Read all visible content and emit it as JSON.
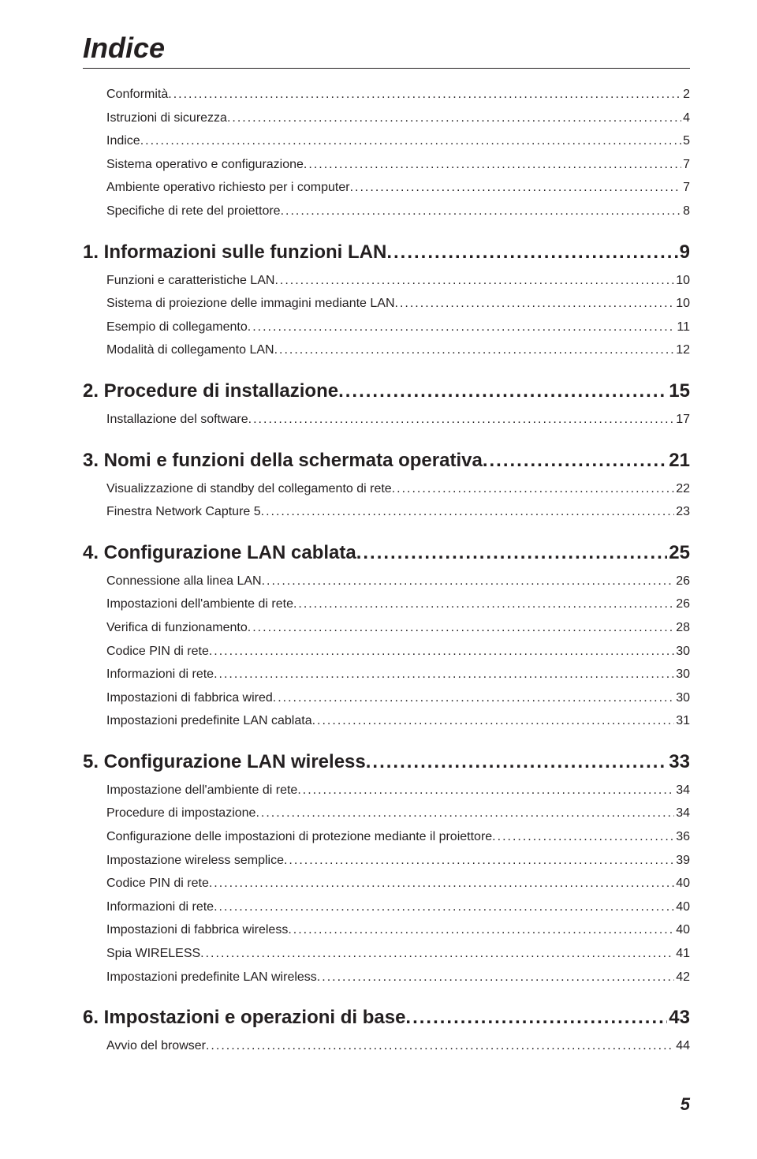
{
  "page": {
    "title": "Indice",
    "footer_page_number": "5",
    "leader_char": "."
  },
  "toc": [
    {
      "level": 1,
      "label": "Conformità",
      "page": "2",
      "first": true
    },
    {
      "level": 1,
      "label": "Istruzioni di sicurezza",
      "page": "4"
    },
    {
      "level": 1,
      "label": "Indice",
      "page": "5"
    },
    {
      "level": 1,
      "label": "Sistema operativo e configurazione",
      "page": "7"
    },
    {
      "level": 1,
      "label": "Ambiente operativo richiesto per i computer",
      "page": "7"
    },
    {
      "level": 1,
      "label": "Specifiche di rete del proiettore",
      "page": "8"
    },
    {
      "level": 0,
      "label": "1. Informazioni sulle funzioni LAN",
      "page": "9"
    },
    {
      "level": 1,
      "label": "Funzioni e caratteristiche LAN",
      "page": "10"
    },
    {
      "level": 1,
      "label": "Sistema di proiezione delle immagini mediante LAN",
      "page": "10"
    },
    {
      "level": 1,
      "label": "Esempio di collegamento",
      "page": "11"
    },
    {
      "level": 1,
      "label": "Modalità di collegamento LAN",
      "page": "12"
    },
    {
      "level": 0,
      "label": "2. Procedure di installazione",
      "page": "15"
    },
    {
      "level": 1,
      "label": "Installazione del software",
      "page": "17"
    },
    {
      "level": 0,
      "label": "3. Nomi e funzioni della schermata operativa",
      "page": "21"
    },
    {
      "level": 1,
      "label": "Visualizzazione di standby del collegamento di rete",
      "page": "22"
    },
    {
      "level": 1,
      "label": "Finestra Network Capture 5",
      "page": "23"
    },
    {
      "level": 0,
      "label": "4. Configurazione LAN cablata",
      "page": "25"
    },
    {
      "level": 1,
      "label": "Connessione alla linea LAN",
      "page": "26"
    },
    {
      "level": 1,
      "label": "Impostazioni dell'ambiente di rete",
      "page": "26"
    },
    {
      "level": 1,
      "label": "Verifica di funzionamento",
      "page": "28"
    },
    {
      "level": 1,
      "label": "Codice PIN di rete",
      "page": "30"
    },
    {
      "level": 1,
      "label": "Informazioni di rete",
      "page": "30"
    },
    {
      "level": 1,
      "label": "Impostazioni di fabbrica wired",
      "page": "30"
    },
    {
      "level": 1,
      "label": "Impostazioni predefinite LAN cablata",
      "page": "31"
    },
    {
      "level": 0,
      "label": "5. Configurazione LAN wireless",
      "page": "33"
    },
    {
      "level": 1,
      "label": "Impostazione dell'ambiente di rete",
      "page": "34"
    },
    {
      "level": 1,
      "label": "Procedure di impostazione",
      "page": "34"
    },
    {
      "level": 1,
      "label": "Configurazione delle impostazioni di protezione mediante il proiettore",
      "page": "36"
    },
    {
      "level": 1,
      "label": "Impostazione wireless semplice",
      "page": "39"
    },
    {
      "level": 1,
      "label": "Codice PIN di rete",
      "page": "40"
    },
    {
      "level": 1,
      "label": "Informazioni di rete",
      "page": "40"
    },
    {
      "level": 1,
      "label": "Impostazioni di fabbrica wireless",
      "page": "40"
    },
    {
      "level": 1,
      "label": "Spia WIRELESS",
      "page": "41"
    },
    {
      "level": 1,
      "label": "Impostazioni predefinite LAN wireless",
      "page": "42"
    },
    {
      "level": 0,
      "label": "6. Impostazioni e operazioni di base",
      "page": "43"
    },
    {
      "level": 1,
      "label": "Avvio del browser",
      "page": "44"
    }
  ]
}
